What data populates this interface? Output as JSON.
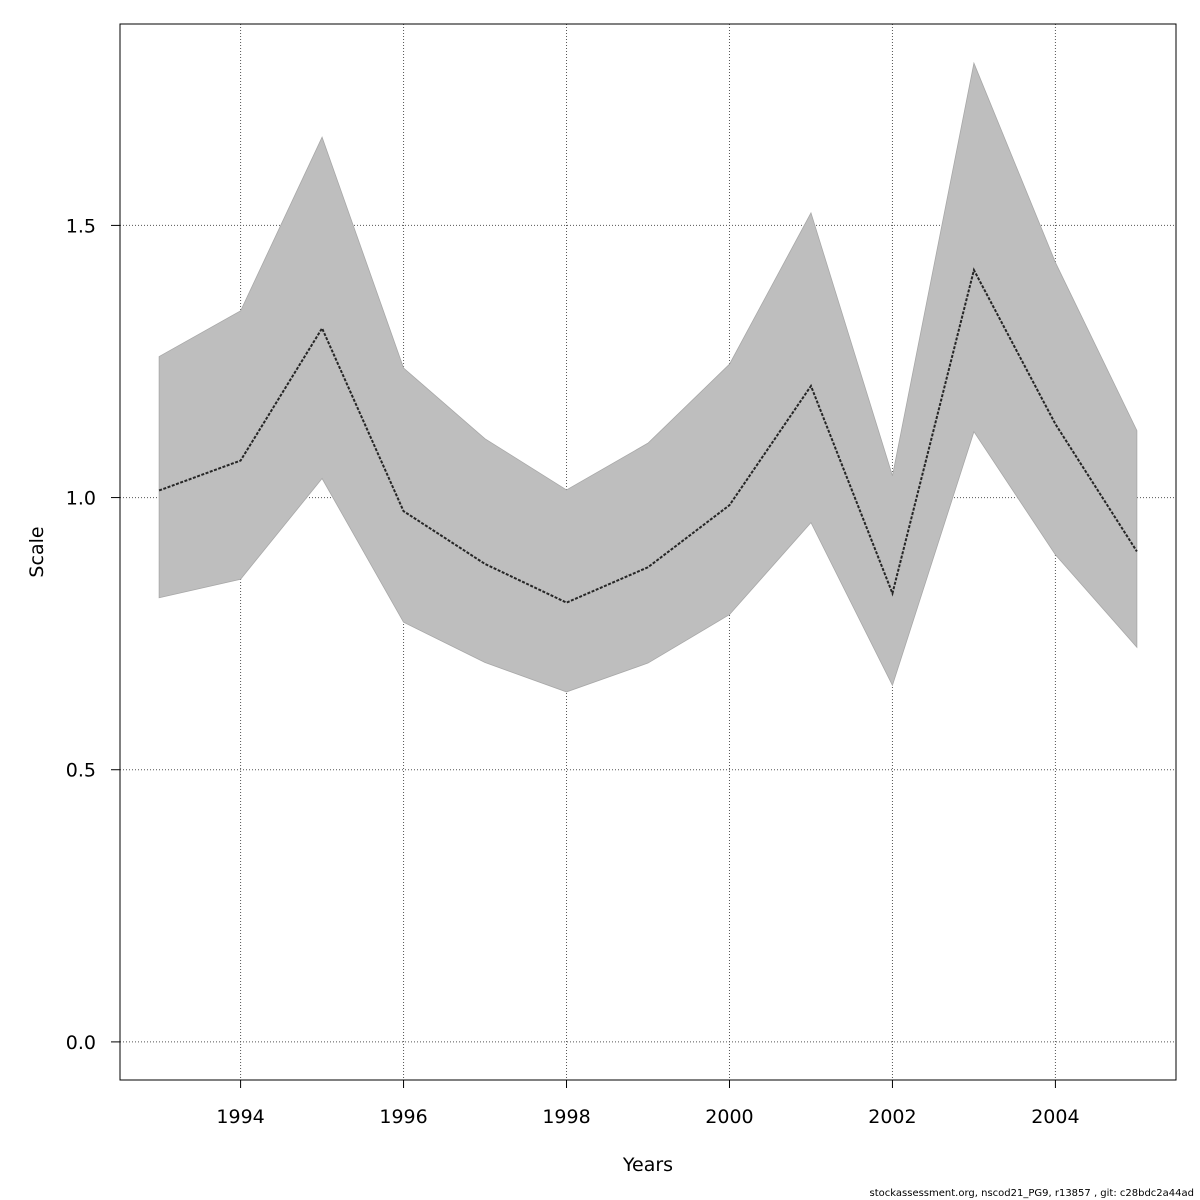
{
  "chart_data": {
    "type": "line",
    "title": "",
    "xlabel": "Years",
    "ylabel": "Scale",
    "xlim": [
      1992.52,
      2005.48
    ],
    "ylim": [
      -0.07,
      1.87
    ],
    "x_ticks": [
      1994,
      1996,
      1998,
      2000,
      2002,
      2004
    ],
    "x_tick_labels": [
      "1994",
      "1996",
      "1998",
      "2000",
      "2002",
      "2004"
    ],
    "y_ticks": [
      0.0,
      0.5,
      1.0,
      1.5
    ],
    "y_tick_labels": [
      "0.0",
      "0.5",
      "1.0",
      "1.5"
    ],
    "grid": true,
    "x": [
      1993,
      1994,
      1995,
      1996,
      1997,
      1998,
      1999,
      2000,
      2001,
      2002,
      2003,
      2004,
      2005
    ],
    "series": [
      {
        "values": [
          1.013,
          1.068,
          1.311,
          0.975,
          0.878,
          0.807,
          0.872,
          0.986,
          1.205,
          0.824,
          1.418,
          1.135,
          0.901
        ],
        "lower": [
          0.816,
          0.85,
          1.035,
          0.771,
          0.697,
          0.643,
          0.696,
          0.785,
          0.954,
          0.655,
          1.121,
          0.895,
          0.725
        ],
        "upper": [
          1.259,
          1.343,
          1.662,
          1.238,
          1.108,
          1.014,
          1.1,
          1.245,
          1.523,
          1.04,
          1.798,
          1.432,
          1.123
        ]
      }
    ],
    "band_color": "#bebebe",
    "line_color": "#000000",
    "line_style": "dashed"
  },
  "footer": "stockassessment.org, nscod21_PG9, r13857 , git: c28bdc2a44ad"
}
